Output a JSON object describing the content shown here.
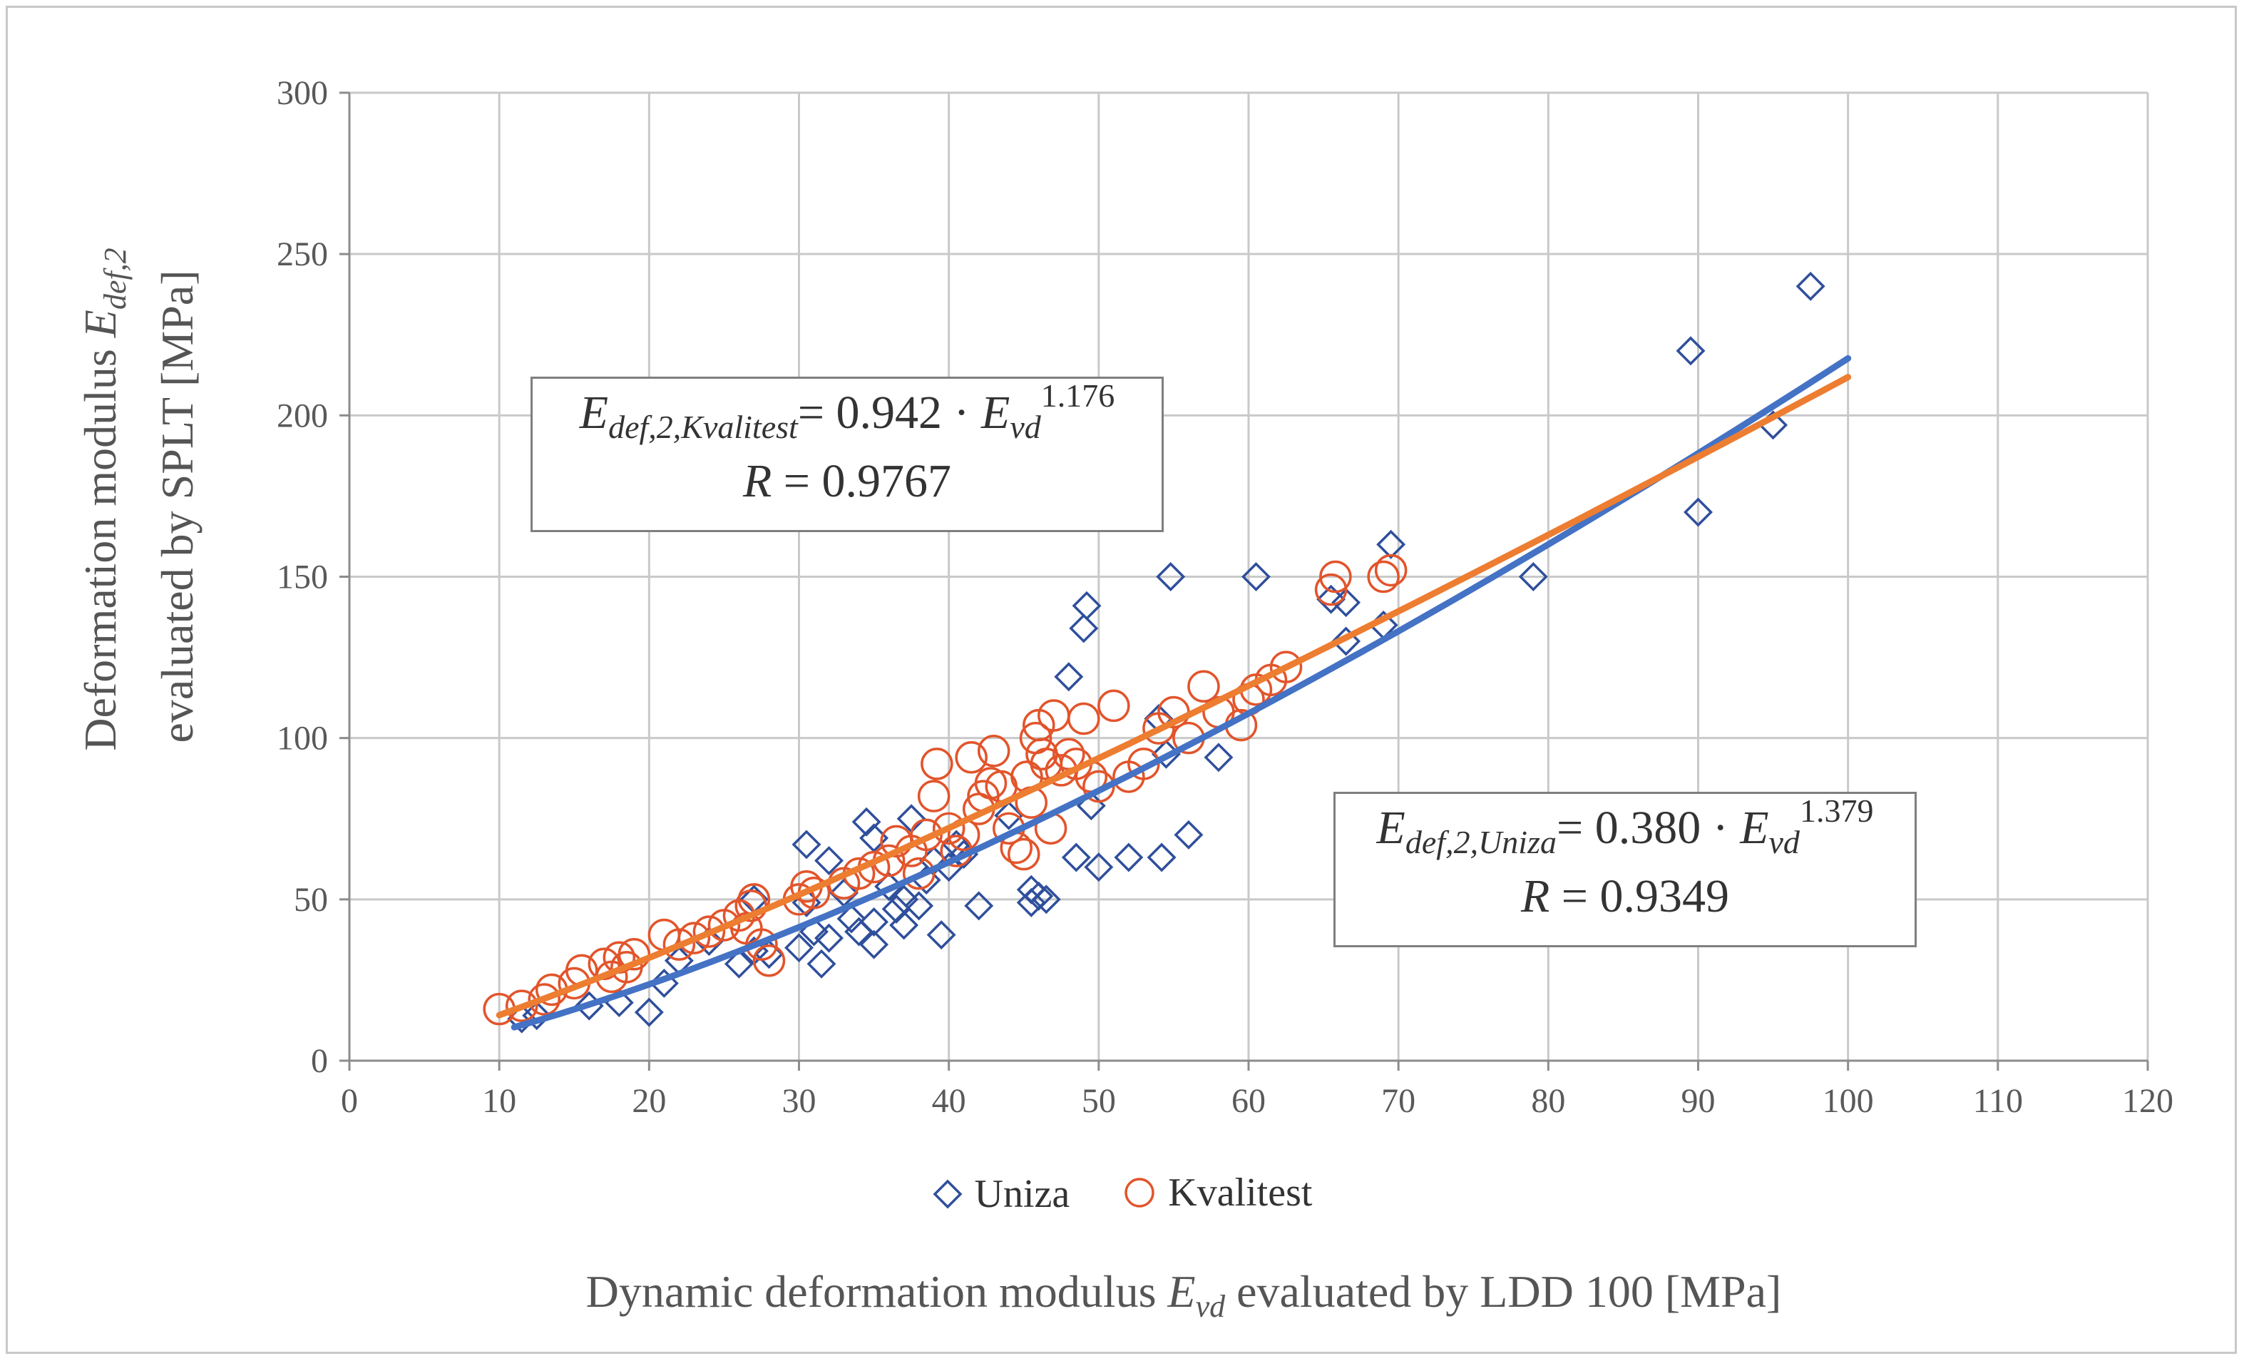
{
  "chart_data": {
    "type": "scatter",
    "title": "",
    "xlabel": {
      "pre": "Dynamic deformation modulus ",
      "var": "E",
      "sub": "vd",
      "post": " evaluated by LDD 100 [MPa]"
    },
    "ylabel": {
      "line1_pre": "Deformation modulus ",
      "line1_var": "E",
      "line1_sub": "def,2",
      "line2": "evaluated by SPLT [MPa]"
    },
    "xlim": [
      0,
      120
    ],
    "ylim": [
      0,
      300
    ],
    "xticks": [
      0,
      10,
      20,
      30,
      40,
      50,
      60,
      70,
      80,
      90,
      100,
      110,
      120
    ],
    "yticks": [
      0,
      50,
      100,
      150,
      200,
      250,
      300
    ],
    "grid": true,
    "legend_position": "bottom",
    "series": [
      {
        "name": "Uniza",
        "marker": "diamond",
        "color": "#2f4f9c",
        "fit": {
          "a": 0.38,
          "b": 1.379,
          "x_from": 11,
          "x_to": 100,
          "color": "#4472c4"
        },
        "points": [
          [
            11.5,
            13
          ],
          [
            12.5,
            14
          ],
          [
            16,
            17
          ],
          [
            18,
            18
          ],
          [
            20,
            15
          ],
          [
            21,
            24
          ],
          [
            22,
            31
          ],
          [
            24,
            37
          ],
          [
            26,
            30
          ],
          [
            27,
            34
          ],
          [
            27,
            50
          ],
          [
            28,
            33
          ],
          [
            30,
            35
          ],
          [
            30.5,
            49
          ],
          [
            30.5,
            67
          ],
          [
            31,
            40
          ],
          [
            31.5,
            30
          ],
          [
            32,
            38
          ],
          [
            32,
            62
          ],
          [
            33,
            52
          ],
          [
            33.5,
            44
          ],
          [
            34,
            40
          ],
          [
            34.5,
            74
          ],
          [
            35,
            36
          ],
          [
            35,
            43
          ],
          [
            35,
            69
          ],
          [
            36,
            54
          ],
          [
            36.5,
            47
          ],
          [
            37,
            42
          ],
          [
            37,
            50
          ],
          [
            37.5,
            75
          ],
          [
            38,
            48
          ],
          [
            38.5,
            56
          ],
          [
            39,
            62
          ],
          [
            39.5,
            39
          ],
          [
            40,
            60
          ],
          [
            40.5,
            67
          ],
          [
            41,
            64
          ],
          [
            42,
            48
          ],
          [
            44,
            76
          ],
          [
            45.5,
            49
          ],
          [
            45.5,
            53
          ],
          [
            46,
            51
          ],
          [
            46.5,
            50
          ],
          [
            48,
            119
          ],
          [
            48.5,
            63
          ],
          [
            49,
            134
          ],
          [
            49.2,
            141
          ],
          [
            49.5,
            79
          ],
          [
            50,
            60
          ],
          [
            52,
            63
          ],
          [
            54,
            106
          ],
          [
            54.2,
            63
          ],
          [
            54.5,
            95
          ],
          [
            54.8,
            150
          ],
          [
            56,
            70
          ],
          [
            58,
            94
          ],
          [
            60.5,
            150
          ],
          [
            65.5,
            143
          ],
          [
            66.5,
            142
          ],
          [
            66.5,
            130
          ],
          [
            69,
            135
          ],
          [
            69.5,
            160
          ],
          [
            79,
            150
          ],
          [
            89.5,
            220
          ],
          [
            90,
            170
          ],
          [
            95,
            197
          ],
          [
            97.5,
            240
          ]
        ]
      },
      {
        "name": "Kvalitest",
        "marker": "circle",
        "color": "#e2542b",
        "fit": {
          "a": 0.942,
          "b": 1.176,
          "x_from": 10,
          "x_to": 100,
          "color": "#ed7d31"
        },
        "points": [
          [
            10,
            16
          ],
          [
            11.5,
            17
          ],
          [
            13,
            19
          ],
          [
            13.5,
            22
          ],
          [
            15,
            24
          ],
          [
            15.5,
            28
          ],
          [
            17,
            30
          ],
          [
            17.5,
            26
          ],
          [
            18,
            32
          ],
          [
            18.5,
            29
          ],
          [
            19,
            33
          ],
          [
            21,
            39
          ],
          [
            22,
            36
          ],
          [
            23,
            38
          ],
          [
            24,
            40
          ],
          [
            25,
            42
          ],
          [
            26,
            45
          ],
          [
            26.5,
            41
          ],
          [
            26.8,
            48
          ],
          [
            27,
            50
          ],
          [
            27.5,
            36
          ],
          [
            28,
            31
          ],
          [
            30,
            50
          ],
          [
            30.5,
            54
          ],
          [
            31,
            52
          ],
          [
            33,
            55
          ],
          [
            34,
            58
          ],
          [
            35,
            60
          ],
          [
            36,
            62
          ],
          [
            36.5,
            68
          ],
          [
            37.5,
            65
          ],
          [
            38,
            58
          ],
          [
            38.5,
            70
          ],
          [
            39,
            82
          ],
          [
            39.2,
            92
          ],
          [
            40,
            72
          ],
          [
            40.5,
            65
          ],
          [
            41,
            70
          ],
          [
            41.5,
            94
          ],
          [
            42,
            78
          ],
          [
            42.3,
            82
          ],
          [
            42.8,
            86
          ],
          [
            43,
            96
          ],
          [
            43.5,
            85
          ],
          [
            44,
            72
          ],
          [
            44.5,
            66
          ],
          [
            45,
            64
          ],
          [
            45.2,
            88
          ],
          [
            45.5,
            80
          ],
          [
            45.8,
            100
          ],
          [
            46,
            104
          ],
          [
            46.2,
            95
          ],
          [
            46.5,
            92
          ],
          [
            46.8,
            72
          ],
          [
            47,
            107
          ],
          [
            47.5,
            90
          ],
          [
            48,
            95
          ],
          [
            48.5,
            92
          ],
          [
            49,
            106
          ],
          [
            49.5,
            88
          ],
          [
            50,
            85
          ],
          [
            51,
            110
          ],
          [
            52,
            88
          ],
          [
            53,
            92
          ],
          [
            54,
            103
          ],
          [
            55,
            108
          ],
          [
            56,
            100
          ],
          [
            57,
            116
          ],
          [
            58,
            108
          ],
          [
            59.5,
            104
          ],
          [
            60,
            112
          ],
          [
            60.5,
            115
          ],
          [
            61.5,
            118
          ],
          [
            62.5,
            122
          ],
          [
            65.5,
            146
          ],
          [
            65.8,
            150
          ],
          [
            69,
            150
          ],
          [
            69.5,
            152
          ]
        ]
      }
    ],
    "annotations": [
      {
        "var": "E",
        "sub": "def,2,Kvalitest",
        "mid": "= 0.942 · ",
        "var2": "E",
        "sub2": "vd",
        "exp": "1.176",
        "r_var": "R",
        "r_val": " = 0.9767"
      },
      {
        "var": "E",
        "sub": "def,2,Uniza",
        "mid": "= 0.380 · ",
        "var2": "E",
        "sub2": "vd",
        "exp": "1.379",
        "r_var": "R",
        "r_val": " = 0.9349"
      }
    ]
  }
}
